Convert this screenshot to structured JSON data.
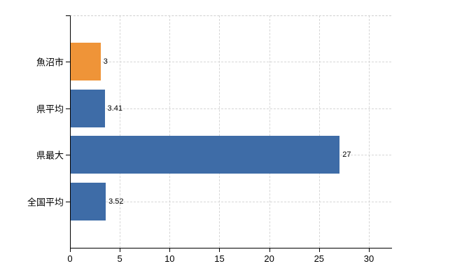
{
  "chart": {
    "background_color": "#ffffff",
    "axis_color": "#000000",
    "gridline_color": "#d6d6d6",
    "text_color": "#000000"
  },
  "chart_data": {
    "type": "bar",
    "orientation": "horizontal",
    "title": "",
    "xlabel": "",
    "ylabel": "",
    "categories": [
      "魚沼市",
      "県平均",
      "県最大",
      "全国平均"
    ],
    "values": [
      3,
      3.41,
      27,
      3.52
    ],
    "value_labels": [
      "3",
      "3.41",
      "27",
      "3.52"
    ],
    "bar_colors": [
      "#ef9438",
      "#3e6ca7",
      "#3e6ca7",
      "#3e6ca7"
    ],
    "xlim": [
      0,
      32.25
    ],
    "xticks": [
      0,
      5,
      10,
      15,
      20,
      25,
      30
    ],
    "xtick_labels": [
      "0",
      "5",
      "10",
      "15",
      "20",
      "25",
      "30"
    ],
    "grid": true,
    "legend": false
  }
}
